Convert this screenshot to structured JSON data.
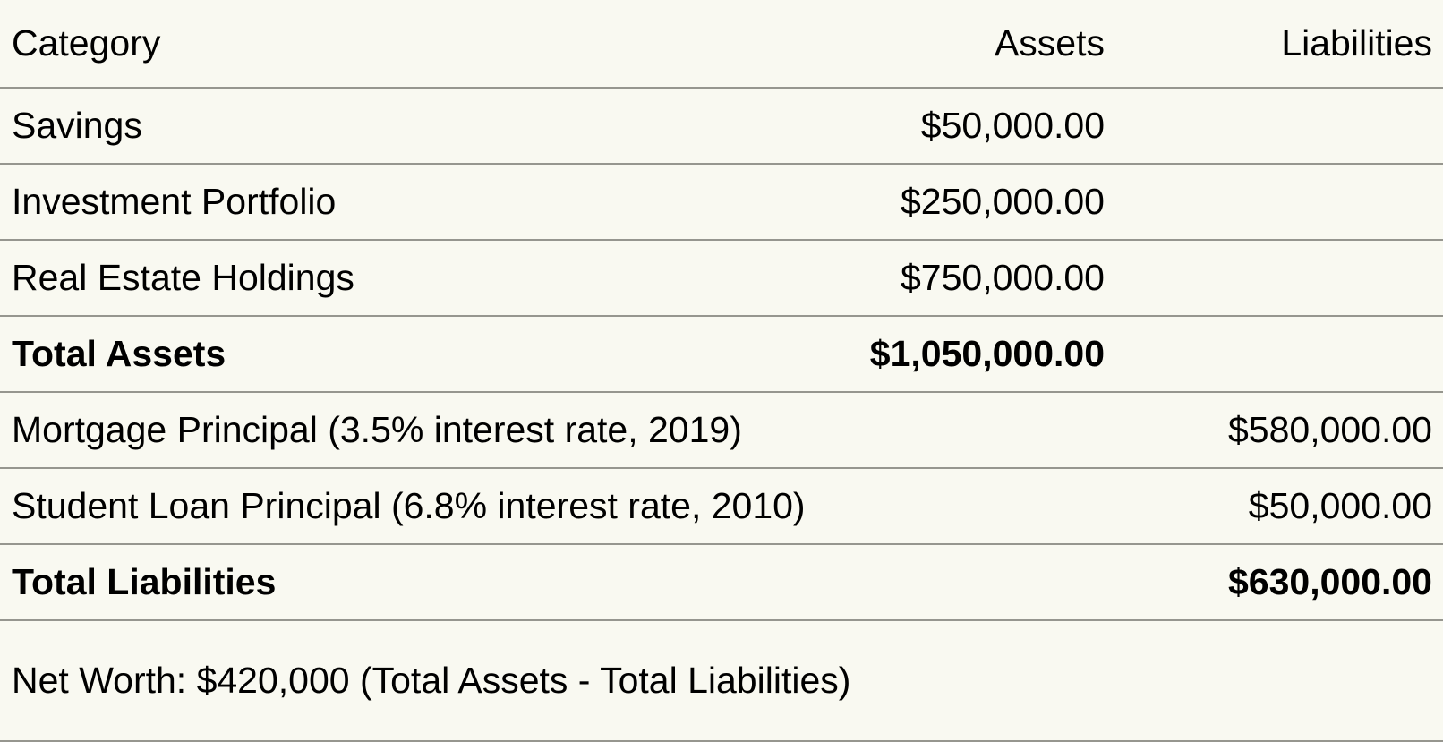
{
  "colors": {
    "sheet_background": "#f9f9f1",
    "divider": "#96968f",
    "text": "#000000"
  },
  "table": {
    "headers": {
      "category": "Category",
      "assets": "Assets",
      "liabilities": "Liabilities"
    },
    "rows": [
      {
        "category": "Savings",
        "assets": "$50,000.00",
        "liabilities": ""
      },
      {
        "category": "Investment Portfolio",
        "assets": "$250,000.00",
        "liabilities": ""
      },
      {
        "category": "Real Estate Holdings",
        "assets": "$750,000.00",
        "liabilities": ""
      },
      {
        "category": "Total Assets",
        "assets": "$1,050,000.00",
        "liabilities": ""
      },
      {
        "category": "Mortgage Principal (3.5% interest rate, 2019)",
        "assets": "",
        "liabilities": "$580,000.00"
      },
      {
        "category": "Student Loan Principal (6.8% interest rate, 2010)",
        "assets": "",
        "liabilities": "$50,000.00"
      },
      {
        "category": "Total Liabilities",
        "assets": "",
        "liabilities": "$630,000.00"
      }
    ],
    "summary": "Net Worth: $420,000 (Total Assets - Total Liabilities)"
  }
}
